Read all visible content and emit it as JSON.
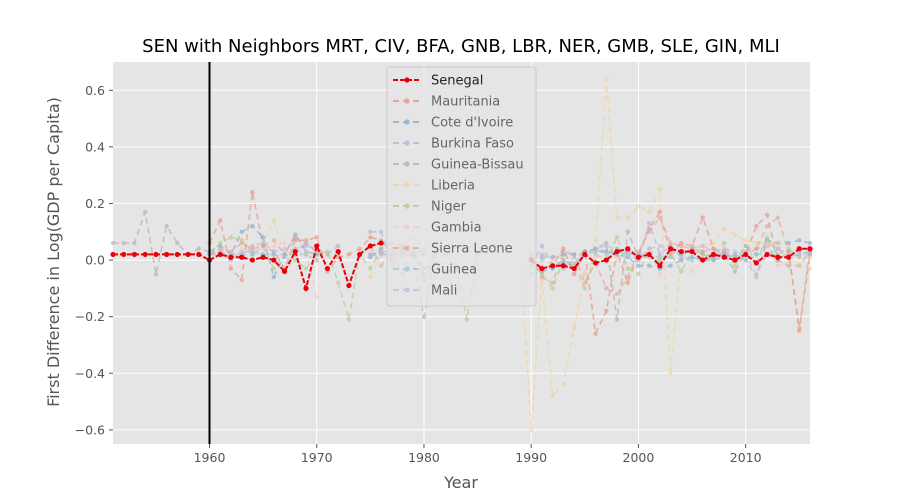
{
  "chart_data": {
    "type": "line",
    "title": "SEN with Neighbors MRT, CIV, BFA, GNB, LBR, NER, GMB, SLE, GIN, MLI",
    "xlabel": "Year",
    "ylabel": "First Difference in Log(GDP per Capita)",
    "xlim": [
      1951,
      2016
    ],
    "ylim": [
      -0.65,
      0.7
    ],
    "xticks": [
      1960,
      1970,
      1980,
      1990,
      2000,
      2010
    ],
    "yticks": [
      -0.6,
      -0.4,
      -0.2,
      0.0,
      0.2,
      0.4,
      0.6
    ],
    "xtick_labels": [
      "1960",
      "1970",
      "1980",
      "1990",
      "2000",
      "2010"
    ],
    "ytick_labels": [
      "−0.6",
      "−0.4",
      "−0.2",
      "0.0",
      "0.2",
      "0.4",
      "0.6"
    ],
    "vline_x": 1960,
    "grid": true,
    "legend_position": "top-center",
    "series": [
      {
        "name": "Senegal",
        "color": "#e8000b",
        "main": true,
        "x": [
          1951,
          1952,
          1953,
          1954,
          1955,
          1956,
          1957,
          1958,
          1959,
          1960,
          1961,
          1962,
          1963,
          1964,
          1965,
          1966,
          1967,
          1968,
          1969,
          1970,
          1971,
          1972,
          1973,
          1974,
          1975,
          1976,
          1990,
          1991,
          1992,
          1993,
          1994,
          1995,
          1996,
          1997,
          1998,
          1999,
          2000,
          2001,
          2002,
          2003,
          2004,
          2005,
          2006,
          2007,
          2008,
          2009,
          2010,
          2011,
          2012,
          2013,
          2014,
          2015,
          2016
        ],
        "y": [
          0.02,
          0.02,
          0.02,
          0.02,
          0.02,
          0.02,
          0.02,
          0.02,
          0.02,
          0.0,
          0.02,
          0.01,
          0.01,
          0.0,
          0.01,
          0.0,
          -0.04,
          0.03,
          -0.1,
          0.05,
          -0.03,
          0.03,
          -0.09,
          0.02,
          0.05,
          0.06,
          0.0,
          -0.03,
          -0.02,
          -0.02,
          -0.03,
          0.02,
          -0.01,
          0.0,
          0.03,
          0.04,
          0.01,
          0.02,
          -0.02,
          0.04,
          0.03,
          0.03,
          0.0,
          0.02,
          0.01,
          0.0,
          0.02,
          -0.01,
          0.02,
          0.01,
          0.01,
          0.04,
          0.04
        ]
      },
      {
        "name": "Mauritania",
        "color": "#e6846f",
        "x": [
          1960,
          1961,
          1962,
          1963,
          1964,
          1965,
          1966,
          1967,
          1968,
          1969,
          1970,
          1971,
          1972,
          1973,
          1974,
          1975,
          1976,
          1977,
          1978,
          1979,
          1980,
          1981,
          1982,
          1990,
          1991,
          1992,
          1993,
          1994,
          1995,
          1996,
          1997,
          1998,
          1999,
          2000,
          2001,
          2002,
          2003,
          2004,
          2005,
          2006,
          2007,
          2008,
          2009,
          2010,
          2011,
          2012,
          2013,
          2014,
          2015,
          2016
        ],
        "y": [
          0.06,
          0.14,
          -0.03,
          -0.07,
          0.24,
          0.05,
          0.03,
          -0.03,
          0.07,
          0.07,
          0.08,
          -0.04,
          0.01,
          0.02,
          0.04,
          0.08,
          0.07,
          0.02,
          -0.05,
          0.04,
          -0.07,
          0.03,
          0.02,
          0.0,
          -0.03,
          -0.02,
          0.04,
          -0.05,
          0.03,
          -0.26,
          -0.18,
          0.03,
          -0.08,
          0.02,
          0.11,
          0.17,
          0.02,
          0.06,
          0.05,
          0.15,
          0.04,
          0.02,
          0.0,
          0.02,
          0.12,
          0.16,
          0.0,
          0.03,
          -0.25,
          0.02
        ]
      },
      {
        "name": "Cote d'Ivoire",
        "color": "#69a3cf",
        "x": [
          1960,
          1961,
          1962,
          1963,
          1964,
          1965,
          1966,
          1967,
          1968,
          1969,
          1970,
          1975,
          1976,
          1977,
          1978,
          1979,
          1980,
          1981,
          1990,
          1991,
          1992,
          1993,
          1994,
          1995,
          1996,
          1997,
          1998,
          1999,
          2000,
          2001,
          2002,
          2003,
          2004,
          2005,
          2006,
          2007,
          2008,
          2009,
          2010,
          2011,
          2012,
          2013,
          2014,
          2015,
          2016
        ],
        "y": [
          0.03,
          0.05,
          0.02,
          0.1,
          0.12,
          0.08,
          -0.06,
          0.02,
          0.09,
          0.03,
          0.02,
          0.01,
          0.04,
          0.06,
          0.05,
          0.02,
          -0.03,
          -0.01,
          -0.05,
          -0.04,
          -0.03,
          -0.01,
          -0.02,
          0.03,
          0.04,
          0.03,
          0.02,
          0.01,
          -0.02,
          -0.02,
          -0.03,
          -0.02,
          0.0,
          0.01,
          0.0,
          0.0,
          0.01,
          0.02,
          0.0,
          -0.06,
          0.07,
          0.06,
          0.06,
          0.07,
          0.06
        ]
      },
      {
        "name": "Burkina Faso",
        "color": "#a8a8dc",
        "x": [
          1960,
          1961,
          1962,
          1963,
          1964,
          1965,
          1966,
          1967,
          1968,
          1969,
          1970,
          1975,
          1976,
          1977,
          1978,
          1979,
          1980,
          1990,
          1991,
          1992,
          1993,
          1994,
          1995,
          1996,
          1997,
          1998,
          1999,
          2000,
          2001,
          2002,
          2003,
          2004,
          2005,
          2006,
          2007,
          2008,
          2009,
          2010,
          2011,
          2012,
          2013,
          2014,
          2015,
          2016
        ],
        "y": [
          0.02,
          0.03,
          0.0,
          0.03,
          0.03,
          0.02,
          0.02,
          0.01,
          0.04,
          0.05,
          0.04,
          0.1,
          0.1,
          -0.02,
          0.03,
          0.02,
          0.04,
          -0.02,
          0.05,
          -0.02,
          0.0,
          -0.02,
          0.02,
          0.04,
          0.02,
          0.04,
          0.03,
          0.0,
          0.13,
          0.02,
          0.05,
          0.01,
          0.05,
          0.03,
          0.01,
          0.03,
          0.0,
          0.05,
          0.02,
          0.06,
          0.04,
          0.01,
          0.02,
          0.03
        ]
      },
      {
        "name": "Guinea-Bissau",
        "color": "#a6a6a6",
        "x": [
          1951,
          1952,
          1953,
          1954,
          1955,
          1956,
          1957,
          1958,
          1959,
          1960,
          1970,
          1971,
          1972,
          1975,
          1976,
          1977,
          1978,
          1979,
          1980,
          1981,
          1990,
          1991,
          1992,
          1993,
          1994,
          1995,
          1996,
          1997,
          1998,
          1999,
          2000,
          2001,
          2002,
          2003,
          2004,
          2005,
          2006,
          2007,
          2008,
          2009,
          2010,
          2011,
          2012,
          2013,
          2014,
          2015,
          2016
        ],
        "y": [
          0.06,
          0.06,
          0.06,
          0.17,
          -0.05,
          0.12,
          0.06,
          0.02,
          0.04,
          0.03,
          0.03,
          0.02,
          0.05,
          0.05,
          -0.02,
          0.02,
          0.03,
          0.01,
          -0.2,
          0.02,
          0.02,
          0.01,
          0.01,
          0.02,
          0.02,
          0.03,
          0.04,
          0.06,
          -0.21,
          0.1,
          0.01,
          0.02,
          -0.01,
          0.03,
          0.02,
          0.04,
          0.02,
          0.01,
          0.02,
          -0.04,
          0.03,
          0.04,
          0.05,
          0.0,
          -0.02,
          -0.02,
          0.03
        ]
      },
      {
        "name": "Liberia",
        "color": "#f5cf8e",
        "x": [
          1960,
          1961,
          1962,
          1963,
          1964,
          1965,
          1966,
          1967,
          1968,
          1969,
          1970,
          1975,
          1976,
          1977,
          1978,
          1979,
          1980,
          1981,
          1989,
          1990,
          1991,
          1992,
          1993,
          1994,
          1995,
          1996,
          1997,
          1998,
          1999,
          2000,
          2001,
          2002,
          2003,
          2004,
          2005,
          2006,
          2007,
          2008,
          2009,
          2010,
          2011,
          2012,
          2013,
          2014,
          2015,
          2016
        ],
        "y": [
          0.03,
          0.02,
          0.02,
          0.04,
          0.05,
          0.06,
          0.14,
          0.02,
          0.04,
          0.02,
          0.0,
          -0.06,
          0.02,
          0.04,
          0.02,
          0.05,
          -0.06,
          -0.05,
          0.0,
          -0.6,
          -0.07,
          -0.48,
          -0.44,
          -0.24,
          -0.05,
          0.07,
          0.64,
          0.15,
          0.15,
          0.19,
          0.17,
          0.25,
          -0.4,
          0.03,
          0.05,
          0.05,
          0.06,
          0.11,
          0.09,
          0.07,
          0.06,
          0.06,
          0.06,
          -0.01,
          -0.02,
          -0.03
        ]
      },
      {
        "name": "Niger",
        "color": "#a6c87e",
        "x": [
          1960,
          1961,
          1962,
          1963,
          1964,
          1965,
          1966,
          1967,
          1968,
          1969,
          1970,
          1971,
          1972,
          1973,
          1974,
          1975,
          1976,
          1983,
          1984,
          1985,
          1990,
          1991,
          1992,
          1993,
          1994,
          1995,
          1996,
          1997,
          1998,
          1999,
          2000,
          2001,
          2002,
          2003,
          2004,
          2005,
          2006,
          2007,
          2008,
          2009,
          2010,
          2011,
          2012,
          2013,
          2014,
          2015,
          2016
        ],
        "y": [
          0.02,
          0.06,
          0.08,
          0.07,
          0.02,
          0.05,
          -0.03,
          0.02,
          0.0,
          -0.03,
          0.02,
          0.03,
          -0.08,
          -0.21,
          0.02,
          -0.03,
          0.04,
          -0.02,
          -0.21,
          0.02,
          0.0,
          -0.05,
          -0.1,
          0.0,
          -0.01,
          -0.1,
          0.02,
          0.0,
          0.08,
          -0.03,
          -0.05,
          0.04,
          0.0,
          0.02,
          -0.04,
          0.03,
          0.02,
          0.0,
          0.06,
          -0.02,
          0.05,
          -0.01,
          0.08,
          0.02,
          0.04,
          0.01,
          0.02
        ]
      },
      {
        "name": "Gambia",
        "color": "#fbc6c6",
        "x": [
          1960,
          1961,
          1962,
          1963,
          1964,
          1965,
          1966,
          1967,
          1968,
          1969,
          1970,
          1975,
          1976,
          1977,
          1978,
          1979,
          1980,
          1990,
          1991,
          1992,
          1993,
          1994,
          1995,
          1996,
          1997,
          1998,
          1999,
          2000,
          2001,
          2002,
          2003,
          2004,
          2005,
          2006,
          2007,
          2008,
          2009,
          2010,
          2011,
          2012,
          2013,
          2014,
          2015,
          2016
        ],
        "y": [
          0.02,
          0.02,
          0.01,
          0.03,
          0.04,
          0.04,
          0.05,
          0.06,
          0.04,
          0.03,
          -0.13,
          0.04,
          -0.02,
          0.05,
          0.02,
          0.1,
          0.03,
          0.01,
          -0.02,
          0.0,
          -0.03,
          -0.02,
          -0.04,
          0.01,
          0.02,
          0.0,
          0.02,
          0.02,
          0.03,
          -0.05,
          0.03,
          0.05,
          -0.04,
          0.01,
          0.03,
          0.04,
          0.01,
          0.0,
          -0.06,
          0.05,
          -0.02,
          -0.01,
          0.02,
          0.01
        ]
      },
      {
        "name": "Sierra Leone",
        "color": "#e89a8c",
        "x": [
          1960,
          1961,
          1962,
          1963,
          1964,
          1965,
          1966,
          1967,
          1968,
          1969,
          1970,
          1975,
          1976,
          1977,
          1978,
          1979,
          1980,
          1990,
          1991,
          1992,
          1993,
          1994,
          1995,
          1996,
          1997,
          1998,
          1999,
          2000,
          2001,
          2002,
          2003,
          2004,
          2005,
          2006,
          2007,
          2008,
          2009,
          2010,
          2011,
          2012,
          2013,
          2014,
          2015,
          2016
        ],
        "y": [
          0.02,
          0.04,
          0.03,
          0.06,
          0.04,
          0.05,
          0.07,
          0.02,
          0.08,
          0.06,
          0.03,
          0.02,
          0.03,
          0.0,
          0.04,
          0.02,
          -0.05,
          0.01,
          -0.06,
          -0.08,
          0.03,
          0.02,
          -0.08,
          -0.01,
          -0.1,
          -0.12,
          -0.06,
          0.03,
          0.1,
          0.15,
          0.06,
          0.05,
          0.04,
          0.03,
          0.04,
          0.03,
          0.01,
          0.02,
          0.04,
          0.12,
          0.15,
          0.03,
          -0.24,
          0.04
        ]
      },
      {
        "name": "Guinea",
        "color": "#8ebfdc",
        "x": [
          1960,
          1961,
          1962,
          1963,
          1964,
          1965,
          1966,
          1967,
          1968,
          1969,
          1970,
          1975,
          1976,
          1977,
          1978,
          1979,
          1980,
          1990,
          1991,
          1992,
          1993,
          1994,
          1995,
          1996,
          1997,
          1998,
          1999,
          2000,
          2001,
          2002,
          2003,
          2004,
          2005,
          2006,
          2007,
          2008,
          2009,
          2010,
          2011,
          2012,
          2013,
          2014,
          2015,
          2016
        ],
        "y": [
          0.02,
          0.02,
          0.02,
          0.02,
          0.02,
          0.02,
          0.02,
          0.02,
          0.02,
          0.02,
          0.0,
          0.02,
          0.02,
          0.02,
          0.02,
          0.02,
          0.02,
          0.0,
          0.02,
          0.01,
          0.02,
          0.02,
          0.02,
          0.03,
          0.03,
          0.03,
          0.02,
          0.02,
          0.01,
          0.01,
          0.01,
          0.0,
          0.0,
          0.0,
          0.01,
          0.02,
          0.01,
          0.0,
          0.02,
          0.02,
          0.01,
          0.01,
          0.02,
          0.03
        ]
      },
      {
        "name": "Mali",
        "color": "#c0b6dd",
        "x": [
          1960,
          1961,
          1962,
          1963,
          1964,
          1965,
          1966,
          1967,
          1968,
          1969,
          1970,
          1975,
          1976,
          1977,
          1978,
          1979,
          1980,
          1990,
          1991,
          1992,
          1993,
          1994,
          1995,
          1996,
          1997,
          1998,
          1999,
          2000,
          2001,
          2002,
          2003,
          2004,
          2005,
          2006,
          2007,
          2008,
          2009,
          2010,
          2011,
          2012,
          2013,
          2014,
          2015,
          2016
        ],
        "y": [
          0.02,
          0.03,
          0.02,
          0.02,
          0.05,
          0.06,
          0.03,
          0.04,
          0.04,
          0.06,
          0.03,
          0.02,
          0.03,
          0.03,
          0.05,
          0.08,
          0.02,
          -0.02,
          0.0,
          0.01,
          -0.03,
          0.01,
          0.02,
          0.04,
          0.05,
          0.04,
          0.02,
          0.0,
          0.04,
          0.05,
          0.04,
          0.02,
          0.04,
          0.05,
          0.03,
          0.04,
          0.03,
          0.02,
          -0.05,
          0.02,
          0.04,
          0.02,
          0.03,
          0.02
        ]
      }
    ]
  }
}
